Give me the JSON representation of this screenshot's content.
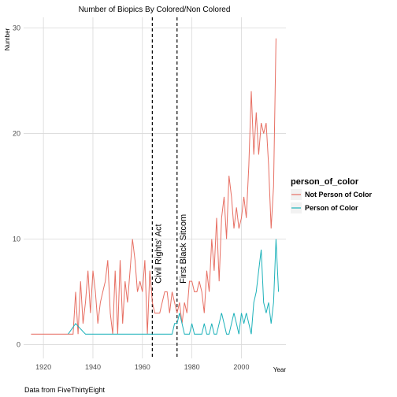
{
  "chart_data": {
    "type": "line",
    "title": "Number of Biopics By Colored/Non Colored",
    "xlabel": "Year",
    "ylabel": "Number",
    "xlim": [
      1912,
      2018
    ],
    "ylim": [
      -1.3,
      31
    ],
    "x_ticks": [
      1920,
      1940,
      1960,
      1980,
      2000
    ],
    "y_ticks": [
      0,
      10,
      20,
      30
    ],
    "grid": true,
    "legend": {
      "title": "person_of_color",
      "placement": "right"
    },
    "caption": "Data from FiveThirtyEight",
    "annotations": [
      {
        "x": 1964,
        "label": "Civil Rights' Act"
      },
      {
        "x": 1974,
        "label": "First Black Sitcom"
      }
    ],
    "series": [
      {
        "name": "Not Person of Color",
        "color": "#E76F63",
        "points": [
          [
            1915,
            1
          ],
          [
            1920,
            1
          ],
          [
            1925,
            1
          ],
          [
            1930,
            1
          ],
          [
            1932,
            1
          ],
          [
            1933,
            5
          ],
          [
            1934,
            1
          ],
          [
            1935,
            6
          ],
          [
            1936,
            2
          ],
          [
            1937,
            4
          ],
          [
            1938,
            7
          ],
          [
            1939,
            3
          ],
          [
            1940,
            7
          ],
          [
            1941,
            5
          ],
          [
            1942,
            2
          ],
          [
            1943,
            4
          ],
          [
            1944,
            5
          ],
          [
            1945,
            6
          ],
          [
            1946,
            8
          ],
          [
            1947,
            3
          ],
          [
            1948,
            1
          ],
          [
            1949,
            7
          ],
          [
            1950,
            1
          ],
          [
            1951,
            8
          ],
          [
            1952,
            2
          ],
          [
            1953,
            6
          ],
          [
            1954,
            4
          ],
          [
            1955,
            7
          ],
          [
            1956,
            10
          ],
          [
            1957,
            8
          ],
          [
            1958,
            5
          ],
          [
            1959,
            6
          ],
          [
            1960,
            5
          ],
          [
            1961,
            8
          ],
          [
            1962,
            1
          ],
          [
            1963,
            7
          ],
          [
            1964,
            4
          ],
          [
            1965,
            3
          ],
          [
            1966,
            3
          ],
          [
            1967,
            3
          ],
          [
            1968,
            4
          ],
          [
            1969,
            5
          ],
          [
            1970,
            5
          ],
          [
            1971,
            3
          ],
          [
            1972,
            5
          ],
          [
            1973,
            4
          ],
          [
            1974,
            3
          ],
          [
            1975,
            4
          ],
          [
            1976,
            2
          ],
          [
            1977,
            4
          ],
          [
            1978,
            3
          ],
          [
            1979,
            6
          ],
          [
            1980,
            6
          ],
          [
            1981,
            5
          ],
          [
            1982,
            5
          ],
          [
            1983,
            6
          ],
          [
            1984,
            5
          ],
          [
            1985,
            3
          ],
          [
            1986,
            7
          ],
          [
            1987,
            5
          ],
          [
            1988,
            10
          ],
          [
            1989,
            7
          ],
          [
            1990,
            12
          ],
          [
            1991,
            6
          ],
          [
            1992,
            12
          ],
          [
            1993,
            14
          ],
          [
            1994,
            10
          ],
          [
            1995,
            16
          ],
          [
            1996,
            14
          ],
          [
            1997,
            11
          ],
          [
            1998,
            13
          ],
          [
            1999,
            11
          ],
          [
            2000,
            12
          ],
          [
            2001,
            14
          ],
          [
            2002,
            12
          ],
          [
            2003,
            17
          ],
          [
            2004,
            24
          ],
          [
            2005,
            18
          ],
          [
            2006,
            22
          ],
          [
            2007,
            18
          ],
          [
            2008,
            21
          ],
          [
            2009,
            20
          ],
          [
            2010,
            21
          ],
          [
            2011,
            17
          ],
          [
            2012,
            11
          ],
          [
            2013,
            15
          ],
          [
            2014,
            29
          ]
        ]
      },
      {
        "name": "Person of Color",
        "color": "#1EB2BA",
        "points": [
          [
            1930,
            1
          ],
          [
            1933,
            2
          ],
          [
            1937,
            1
          ],
          [
            1940,
            1
          ],
          [
            1945,
            1
          ],
          [
            1950,
            1
          ],
          [
            1955,
            1
          ],
          [
            1960,
            1
          ],
          [
            1965,
            1
          ],
          [
            1970,
            1
          ],
          [
            1972,
            1
          ],
          [
            1973,
            2
          ],
          [
            1974,
            2
          ],
          [
            1975,
            3
          ],
          [
            1976,
            2
          ],
          [
            1977,
            1
          ],
          [
            1978,
            1
          ],
          [
            1979,
            1
          ],
          [
            1980,
            2
          ],
          [
            1981,
            1
          ],
          [
            1982,
            1
          ],
          [
            1983,
            1
          ],
          [
            1984,
            1
          ],
          [
            1985,
            2
          ],
          [
            1986,
            1
          ],
          [
            1987,
            1
          ],
          [
            1988,
            2
          ],
          [
            1989,
            1
          ],
          [
            1990,
            1
          ],
          [
            1991,
            2
          ],
          [
            1992,
            3
          ],
          [
            1993,
            2
          ],
          [
            1994,
            1
          ],
          [
            1995,
            1
          ],
          [
            1996,
            2
          ],
          [
            1997,
            3
          ],
          [
            1998,
            2
          ],
          [
            1999,
            1
          ],
          [
            2000,
            3
          ],
          [
            2001,
            2
          ],
          [
            2002,
            3
          ],
          [
            2003,
            2
          ],
          [
            2004,
            1
          ],
          [
            2005,
            4
          ],
          [
            2006,
            5
          ],
          [
            2007,
            7
          ],
          [
            2008,
            9
          ],
          [
            2009,
            4
          ],
          [
            2010,
            3
          ],
          [
            2011,
            4
          ],
          [
            2012,
            2
          ],
          [
            2013,
            4
          ],
          [
            2014,
            10
          ],
          [
            2015,
            5
          ]
        ]
      }
    ]
  }
}
